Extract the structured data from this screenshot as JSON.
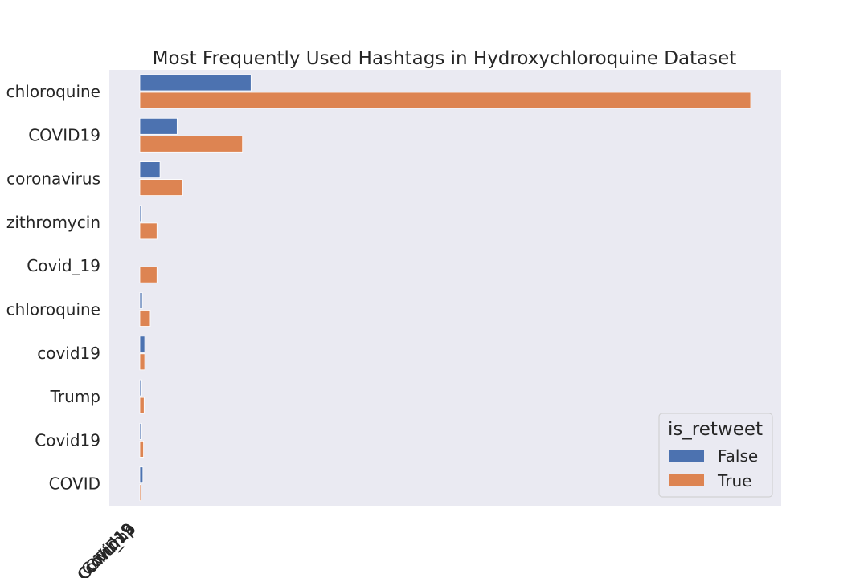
{
  "chart_data": {
    "type": "bar",
    "orientation": "horizontal",
    "title": "Most Frequently Used Hashtags in Hydroxychloroquine Dataset",
    "xlabel": "",
    "ylabel": "",
    "categories": [
      "chloroquine",
      "COVID19",
      "coronavirus",
      "zithromycin",
      "Covid_19",
      "chloroquine",
      "covid19",
      "Trump",
      "Covid19",
      "COVID"
    ],
    "x_tick_labels": [
      "Trump",
      "Covid_19",
      "COVID19",
      "covid19",
      "Covid19"
    ],
    "legend": {
      "title": "is_retweet",
      "placement": "lower-right",
      "entries": [
        "False",
        "True"
      ]
    },
    "grid": false,
    "xlim": [
      0,
      1000
    ],
    "series": [
      {
        "name": "False",
        "color": "#4c72b0",
        "values": [
          182,
          61,
          33,
          3,
          0,
          4,
          8,
          3,
          3,
          5
        ]
      },
      {
        "name": "True",
        "color": "#dd8452",
        "values": [
          1000,
          168,
          70,
          28,
          28,
          17,
          8,
          7,
          6,
          2
        ]
      }
    ]
  }
}
